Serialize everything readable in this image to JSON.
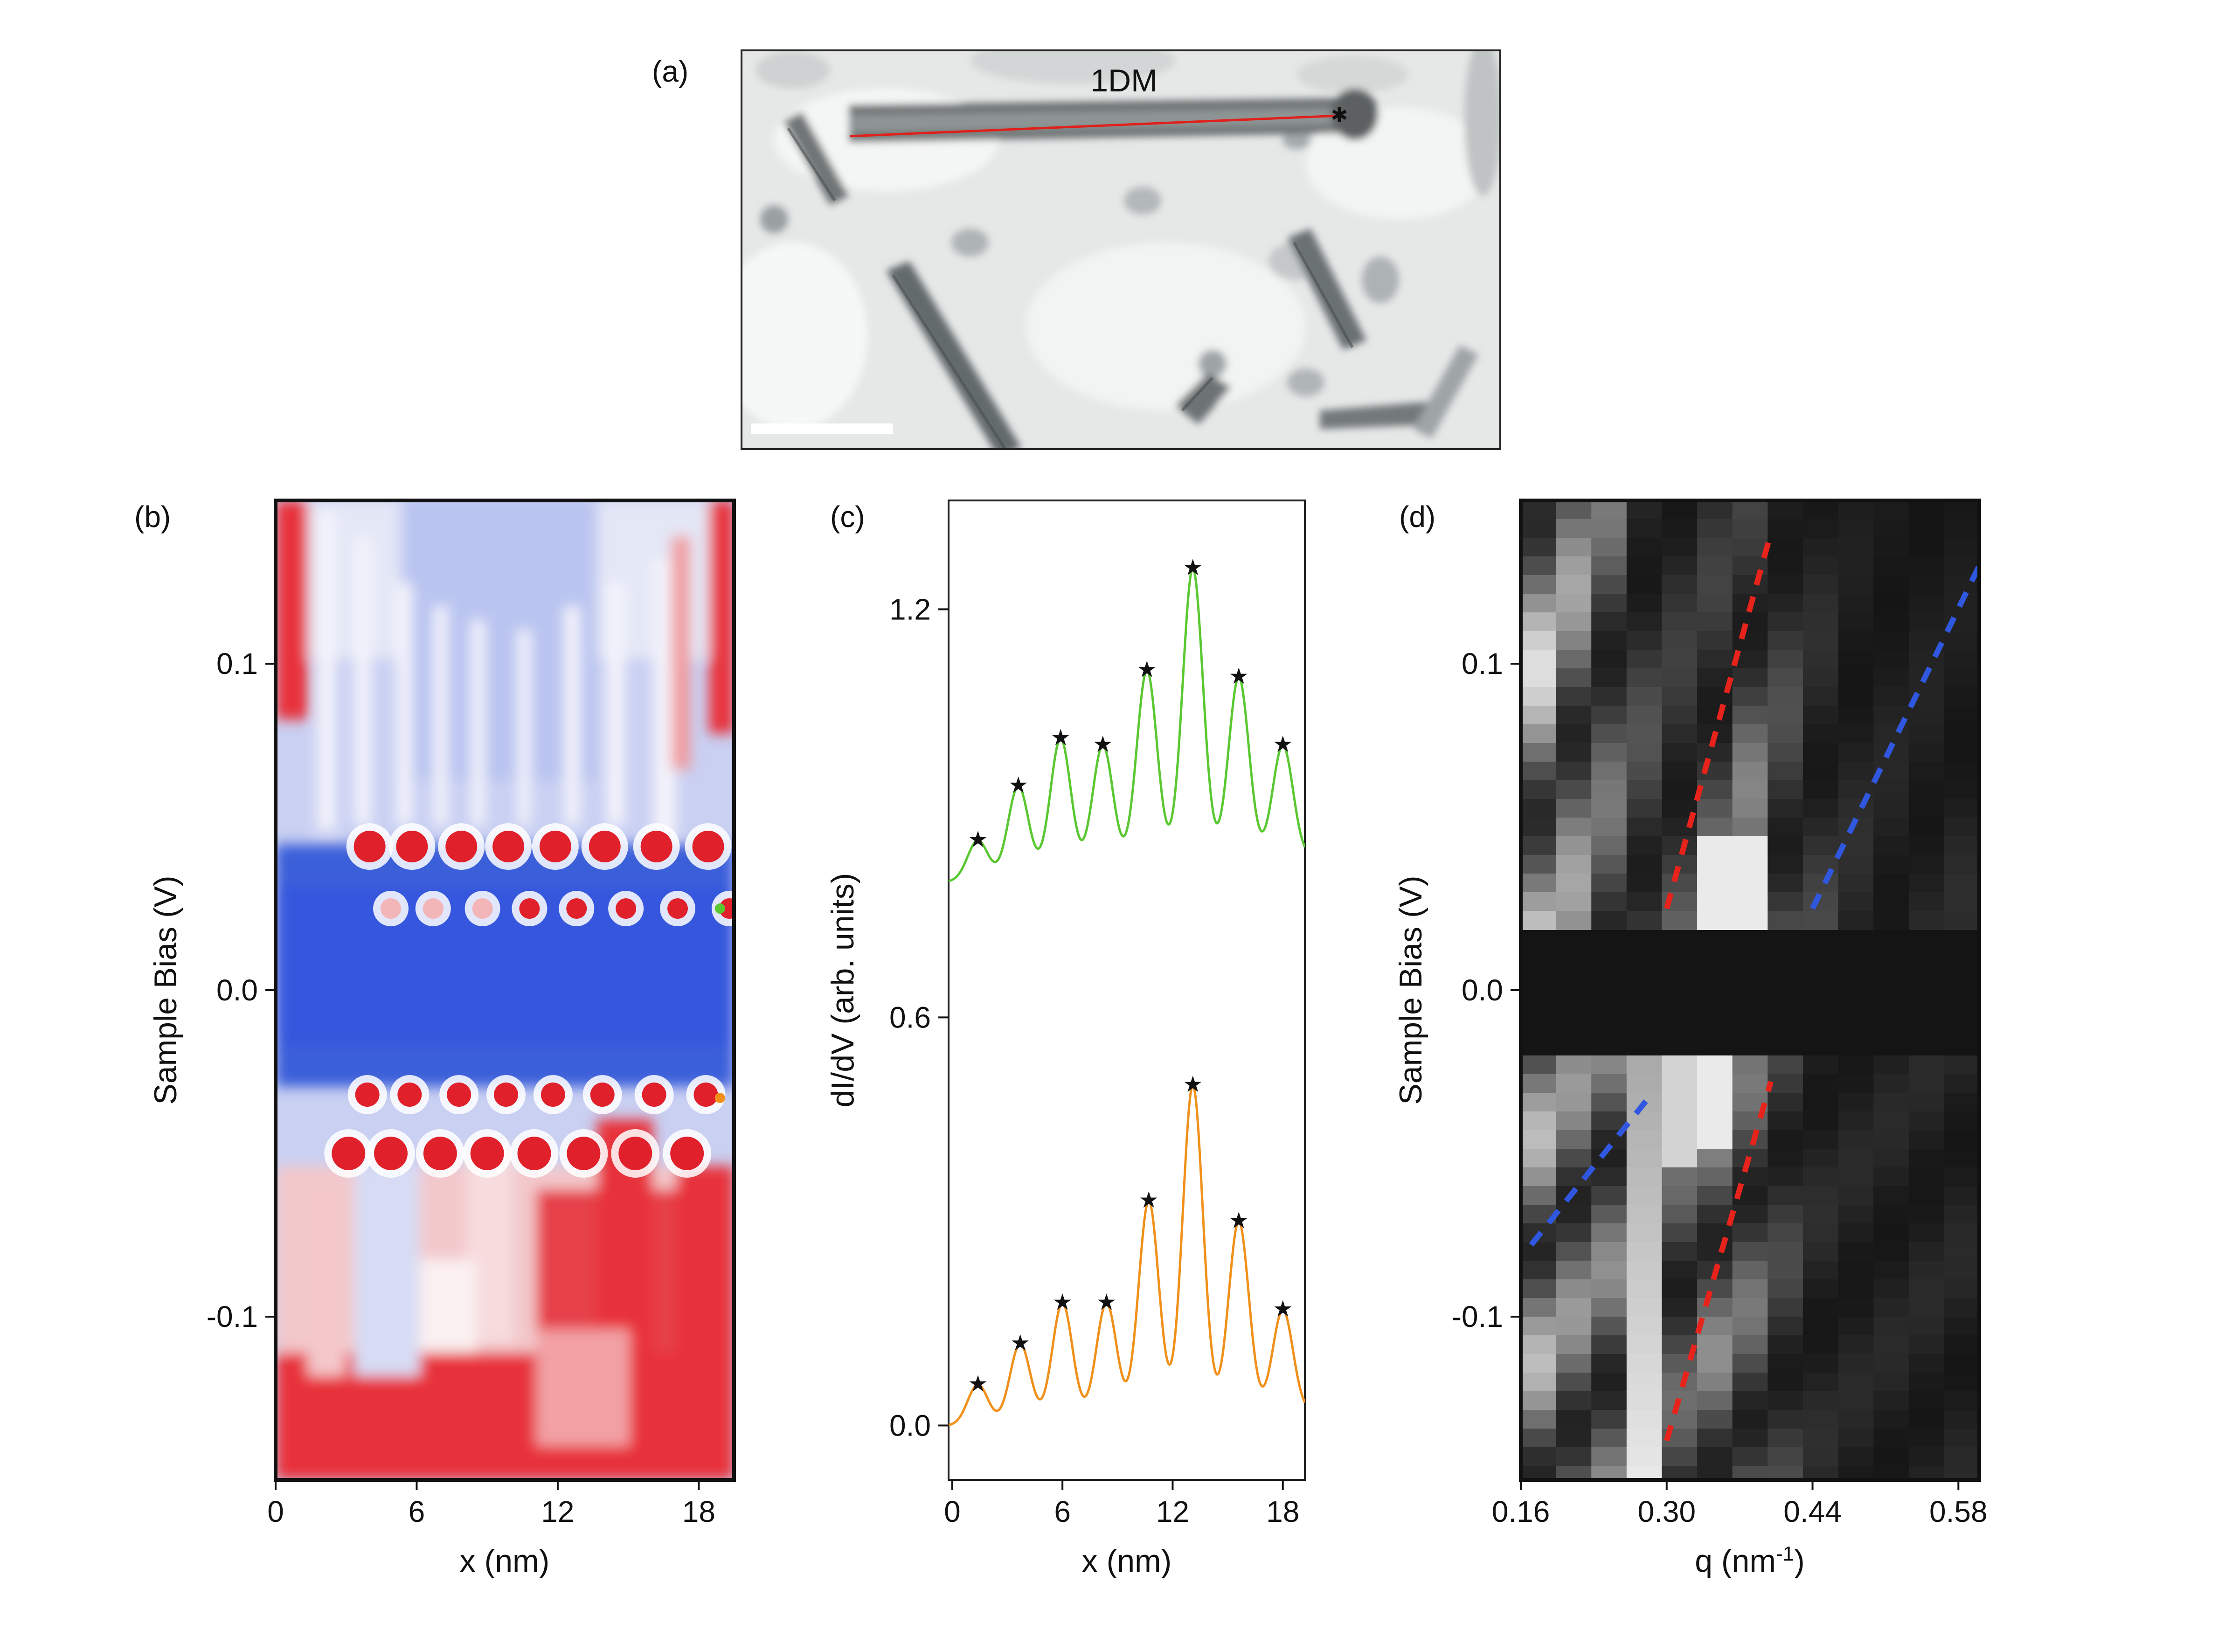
{
  "panels": {
    "a": {
      "label": "(a)",
      "annotation": "1DM"
    },
    "b": {
      "label": "(b)",
      "ylabel": "Sample Bias (V)",
      "xlabel": "x (nm)",
      "colors": {
        "negative": "#3a5fd9",
        "positive": "#e0202a",
        "mid": "#ffffff"
      }
    },
    "c": {
      "label": "(c)",
      "ylabel": "dI/dV (arb. units)",
      "xlabel": "x (nm)"
    },
    "d": {
      "label": "(d)",
      "ylabel": "Sample Bias (V)",
      "xlabel_main": "q (nm",
      "xlabel_sup": "-1",
      "xlabel_end": ")"
    }
  },
  "chart_data": [
    {
      "panel": "b",
      "type": "heatmap",
      "xlabel": "x (nm)",
      "ylabel": "Sample Bias (V)",
      "xlim": [
        0,
        19.5
      ],
      "ylim": [
        -0.15,
        0.15
      ],
      "x_ticks": [
        0,
        6,
        12,
        18
      ],
      "x_tick_labels": [
        "0",
        "6",
        "12",
        "18"
      ],
      "y_ticks": [
        0.1,
        0.0,
        -0.1
      ],
      "y_tick_labels": [
        "0.1",
        "0.0",
        "-0.1"
      ],
      "peak_x_nm": [
        4.0,
        5.8,
        7.9,
        9.9,
        11.9,
        14.0,
        16.2,
        18.4
      ],
      "gap_bias_range_v": [
        -0.02,
        0.02
      ],
      "markers": [
        {
          "x": 18.9,
          "y": 0.025,
          "color": "#5ac831"
        },
        {
          "x": 18.9,
          "y": -0.033,
          "color": "#f0901a"
        }
      ]
    },
    {
      "panel": "c",
      "type": "line",
      "xlabel": "x (nm)",
      "ylabel": "dI/dV (arb. units)",
      "xlim": [
        -0.2,
        19.2
      ],
      "ylim": [
        -0.08,
        1.36
      ],
      "x_ticks": [
        0,
        6,
        12,
        18
      ],
      "x_tick_labels": [
        "0",
        "6",
        "12",
        "18"
      ],
      "y_ticks": [
        0.0,
        0.6,
        1.2
      ],
      "y_tick_labels": [
        "0.0",
        "0.6",
        "1.2"
      ],
      "series": [
        {
          "color": "#5ac831",
          "baseline": 0.8,
          "peaks_x": [
            1.4,
            3.6,
            5.9,
            8.2,
            10.6,
            13.1,
            15.6,
            18.0
          ],
          "peaks_y": [
            0.86,
            0.94,
            1.01,
            1.0,
            1.11,
            1.26,
            1.1,
            1.0
          ]
        },
        {
          "color": "#f0901a",
          "baseline": 0.0,
          "peaks_x": [
            1.4,
            3.7,
            6.0,
            8.4,
            10.7,
            13.1,
            15.6,
            18.0
          ],
          "peaks_y": [
            0.06,
            0.12,
            0.18,
            0.18,
            0.33,
            0.5,
            0.3,
            0.17
          ]
        }
      ]
    },
    {
      "panel": "d",
      "type": "heatmap",
      "xlabel": "q (nm-1)",
      "ylabel": "Sample Bias (V)",
      "xlim": [
        0.16,
        0.6
      ],
      "ylim": [
        -0.15,
        0.15
      ],
      "x_ticks": [
        0.16,
        0.3,
        0.44,
        0.58
      ],
      "x_tick_labels": [
        "0.16",
        "0.30",
        "0.44",
        "0.58"
      ],
      "y_ticks": [
        0.1,
        0.0,
        -0.1
      ],
      "y_tick_labels": [
        "0.1",
        "0.0",
        "-0.1"
      ],
      "dispersion_lines": [
        {
          "color": "#e8231c",
          "points": [
            [
              0.3,
              0.025
            ],
            [
              0.4,
              0.14
            ]
          ]
        },
        {
          "color": "#e8231c",
          "points": [
            [
              0.3,
              -0.138
            ],
            [
              0.4,
              -0.028
            ]
          ]
        },
        {
          "color": "#3057e0",
          "points": [
            [
              0.44,
              0.025
            ],
            [
              0.6,
              0.13
            ]
          ]
        },
        {
          "color": "#3057e0",
          "points": [
            [
              0.17,
              -0.078
            ],
            [
              0.28,
              -0.034
            ]
          ]
        }
      ]
    }
  ]
}
